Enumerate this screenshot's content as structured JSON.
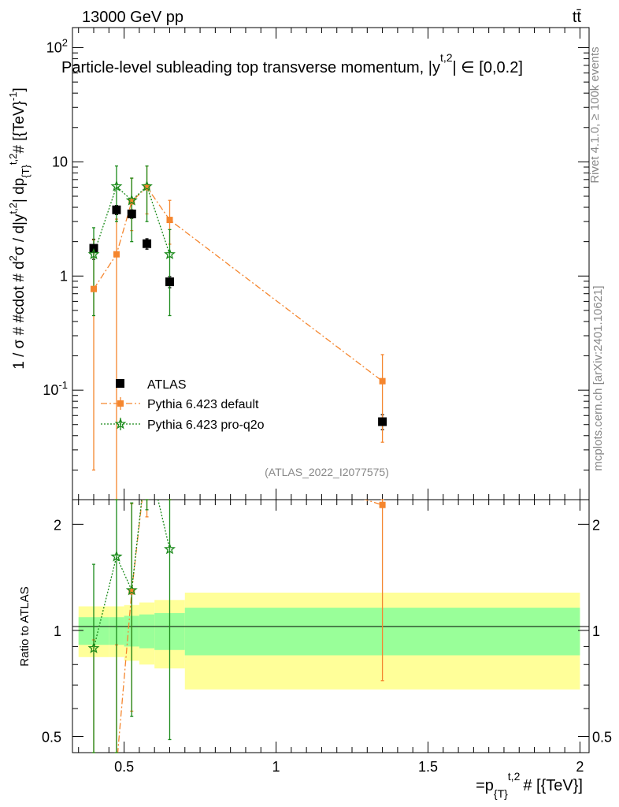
{
  "header": {
    "energy_label": "13000 GeV pp",
    "process_label": "tt̄",
    "title": "Particle-level subleading top transverse momentum, |y",
    "title_sup": "t,2",
    "title_tail": "| ∈ [0,0.2]",
    "analysis_id": "(ATLAS_2022_I2077575)"
  },
  "side_labels": {
    "rivet": "Rivet 4.1.0, ≥ 100k events",
    "mcplots": "mcplots.cern.ch [arXiv:2401.10621]"
  },
  "axes": {
    "ylabel_main": "1 / σ # #cdot # d²σ / d|y^{t,2}| dp_{T}^{t,2} # [{TeV}⁻¹]",
    "ylabel_main_parts": [
      "1 / σ # #cdot # d",
      "σ / d|y",
      "| dp",
      "# [{TeV}",
      "]"
    ],
    "ylabel_main_sups": [
      "2",
      "t,2",
      "t,2",
      "-1"
    ],
    "ylabel_main_sub": "{T}",
    "ylabel_ratio": "Ratio to ATLAS",
    "xlabel_prefix": "=p",
    "xlabel_sub": "{T}",
    "xlabel_sup": "t,2",
    "xlabel_suffix": "# [{TeV}]"
  },
  "legend": [
    {
      "label": "ATLAS",
      "color": "#000000",
      "marker": "square"
    },
    {
      "label": "Pythia 6.423 default",
      "color": "#f5862e",
      "marker": "square"
    },
    {
      "label": "Pythia 6.423 pro-q2o",
      "color": "#1a8a1a",
      "marker": "star"
    }
  ],
  "chart_data": {
    "type": "scatter",
    "title": "Particle-level subleading top transverse momentum, |y^t,2| ∈ [0,0.2]",
    "xlabel": "p_T^t,2 [TeV]",
    "ylabel": "1/σ d²σ / d|y^t,2| dp_T^t,2 [TeV^-1]",
    "xlim": [
      0.33,
      2.03
    ],
    "ylim_main": [
      0.011,
      150
    ],
    "yscale_main": "log",
    "ylim_ratio": [
      0.45,
      2.35
    ],
    "yscale_ratio": "log",
    "x_ticks": [
      "0.5",
      "1",
      "1.5",
      "2"
    ],
    "y_ticks_main": [
      "10^-1",
      "1",
      "10",
      "10^2"
    ],
    "y_ticks_ratio": [
      "0.5",
      "1",
      "2"
    ],
    "series": [
      {
        "name": "ATLAS",
        "x": [
          0.4,
          0.475,
          0.525,
          0.575,
          0.65,
          1.35
        ],
        "y": [
          1.75,
          3.8,
          3.5,
          1.92,
          0.89,
          0.053
        ],
        "y_err_up": [
          0.35,
          0.35,
          0.3,
          0.2,
          0.1,
          0.008
        ],
        "y_err_down": [
          0.35,
          0.35,
          0.3,
          0.2,
          0.1,
          0.008
        ]
      },
      {
        "name": "Pythia 6.423 default",
        "x": [
          0.4,
          0.475,
          0.525,
          0.575,
          0.65,
          1.35
        ],
        "y": [
          0.77,
          1.55,
          4.5,
          6.0,
          3.1,
          0.12
        ],
        "y_err_up": [
          1.3,
          1.6,
          2.7,
          3.2,
          1.5,
          0.085
        ],
        "y_err_down": [
          0.75,
          1.54,
          2.0,
          2.5,
          1.2,
          0.085
        ],
        "ratio": [
          0.44,
          0.41,
          1.29,
          3.1,
          3.5,
          2.27
        ],
        "ratio_err_up": [
          0.5,
          0.5,
          1.0,
          1.0,
          1.0,
          1.5
        ],
        "ratio_err_down": [
          0.5,
          0.5,
          0.7,
          1.0,
          1.0,
          1.55
        ]
      },
      {
        "name": "Pythia 6.423 pro-q2o",
        "x": [
          0.4,
          0.475,
          0.525,
          0.575,
          0.65
        ],
        "y": [
          1.55,
          6.1,
          4.6,
          6.1,
          1.55
        ],
        "y_err_up": [
          1.1,
          3.1,
          2.6,
          3.1,
          1.0
        ],
        "y_err_down": [
          1.1,
          3.1,
          2.6,
          3.1,
          1.1
        ],
        "ratio": [
          0.89,
          1.62,
          1.3,
          3.2,
          1.7
        ],
        "ratio_err_up": [
          0.65,
          1.2,
          1.0,
          1.0,
          1.1
        ],
        "ratio_err_down": [
          0.7,
          1.2,
          0.73,
          1.0,
          1.21
        ]
      }
    ],
    "ratio_bands": {
      "bin_edges": [
        0.35,
        0.45,
        0.5,
        0.55,
        0.6,
        0.7,
        2.0
      ],
      "inner_up": [
        1.09,
        1.09,
        1.1,
        1.11,
        1.12,
        1.16
      ],
      "inner_down": [
        0.91,
        0.91,
        0.9,
        0.89,
        0.88,
        0.85
      ],
      "outer_up": [
        1.17,
        1.17,
        1.18,
        1.2,
        1.22,
        1.28
      ],
      "outer_down": [
        0.84,
        0.84,
        0.82,
        0.8,
        0.78,
        0.68
      ],
      "inner_color": "#99ff99",
      "outer_color": "#ffff99"
    }
  }
}
